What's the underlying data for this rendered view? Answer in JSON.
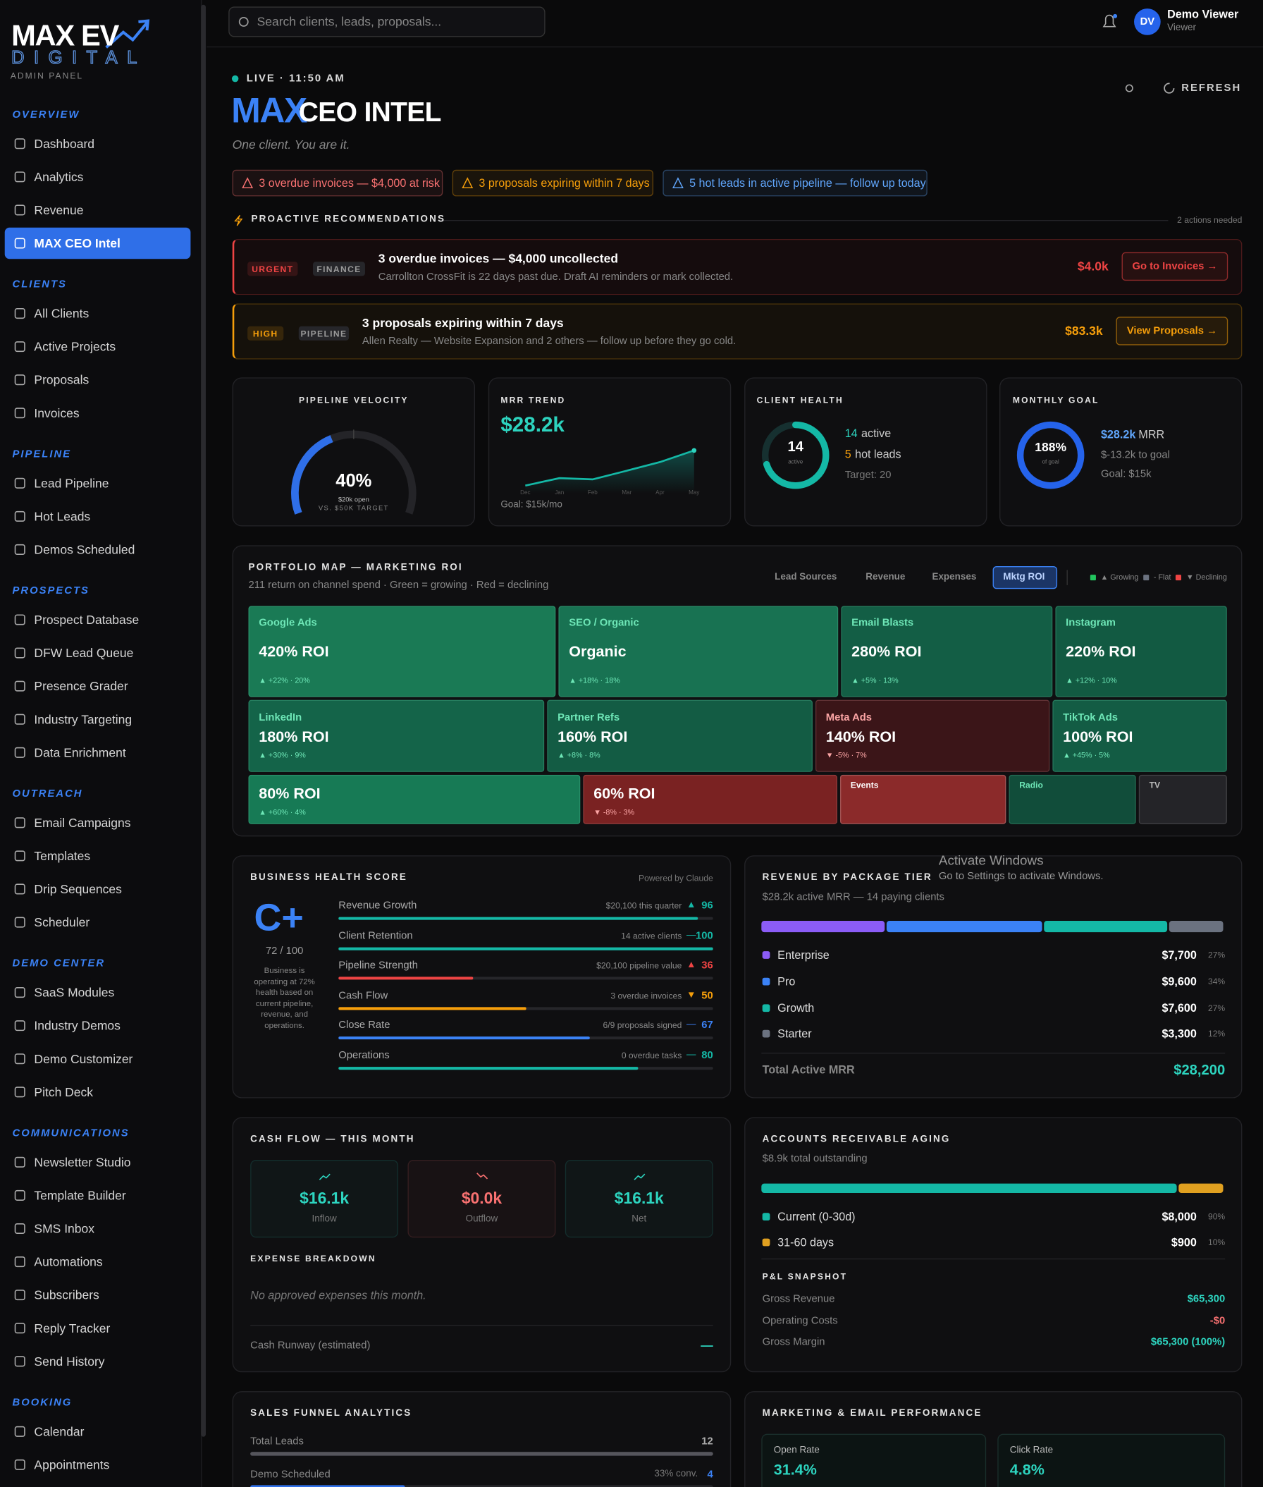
{
  "sidebar": {
    "logo_top": "MAX EV",
    "logo_bottom": "DIGITAL",
    "subtitle": "ADMIN PANEL",
    "active": {
      "section": 0,
      "item": 3
    },
    "sections": [
      {
        "title": "OVERVIEW",
        "items": [
          "Dashboard",
          "Analytics",
          "Revenue",
          "MAX CEO Intel"
        ]
      },
      {
        "title": "CLIENTS",
        "items": [
          "All Clients",
          "Active Projects",
          "Proposals",
          "Invoices"
        ]
      },
      {
        "title": "PIPELINE",
        "items": [
          "Lead Pipeline",
          "Hot Leads",
          "Demos Scheduled"
        ]
      },
      {
        "title": "PROSPECTS",
        "items": [
          "Prospect Database",
          "DFW Lead Queue",
          "Presence Grader",
          "Industry Targeting",
          "Data Enrichment"
        ]
      },
      {
        "title": "OUTREACH",
        "items": [
          "Email Campaigns",
          "Templates",
          "Drip Sequences",
          "Scheduler"
        ]
      },
      {
        "title": "DEMO CENTER",
        "items": [
          "SaaS Modules",
          "Industry Demos",
          "Demo Customizer",
          "Pitch Deck"
        ]
      },
      {
        "title": "COMMUNICATIONS",
        "items": [
          "Newsletter Studio",
          "Template Builder",
          "SMS Inbox",
          "Automations",
          "Subscribers",
          "Reply Tracker",
          "Send History"
        ]
      },
      {
        "title": "BOOKING",
        "items": [
          "Calendar",
          "Appointments"
        ]
      }
    ]
  },
  "topbar": {
    "search": "Search clients, leads, proposals...",
    "avatar": "DV",
    "user": "Demo Viewer",
    "role": "Viewer"
  },
  "header": {
    "live": "LIVE · 11:50 AM",
    "title_accent": "MAX",
    "title": "CEO INTEL",
    "tagline": "One client. You are it.",
    "refresh": "REFRESH"
  },
  "alerts": [
    {
      "text": "3 overdue invoices — $4,000 at risk",
      "color": "#f87171"
    },
    {
      "text": "3 proposals expiring within 7 days",
      "color": "#f59e0b"
    },
    {
      "text": "5 hot leads in active pipeline — follow up today",
      "color": "#60a5fa"
    }
  ],
  "recommendations": {
    "title": "PROACTIVE RECOMMENDATIONS",
    "count": "2 actions needed",
    "items": [
      {
        "priority": "URGENT",
        "category": "FINANCE",
        "title": "3 overdue invoices — $4,000 uncollected",
        "detail": "Carrollton CrossFit is 22 days past due. Draft AI reminders or mark collected.",
        "amount": "$4.0k",
        "action": "Go to Invoices →",
        "color": "#ef4444"
      },
      {
        "priority": "HIGH",
        "category": "PIPELINE",
        "title": "3 proposals expiring within 7 days",
        "detail": "Allen Realty — Website Expansion and 2 others — follow up before they go cold.",
        "amount": "$83.3k",
        "action": "View Proposals →",
        "color": "#f59e0b"
      }
    ]
  },
  "kpis": {
    "pipeline_velocity": {
      "title": "PIPELINE VELOCITY",
      "gauge": {
        "value": 40,
        "label": "40%"
      },
      "open": "$20k open",
      "target": "VS. $50K TARGET"
    },
    "mrr_trend": {
      "title": "MRR TREND",
      "value": "$28.2k",
      "months": [
        "Dec",
        "Jan",
        "Feb",
        "Mar",
        "Apr",
        "May"
      ],
      "values": [
        14,
        17,
        16.5,
        20,
        23.5,
        28.2
      ],
      "goal": "Goal: $15k/mo"
    },
    "client_health": {
      "title": "CLIENT HEALTH",
      "active": 14,
      "ring_label": "active",
      "active_text": "active",
      "hot": 5,
      "hot_text": "hot leads",
      "target": {
        "value": 20,
        "label": "Target: 20"
      }
    },
    "monthly_goal": {
      "title": "MONTHLY GOAL",
      "percent": {
        "value": 188,
        "label": "188%"
      },
      "ring_label": "of goal",
      "mrr": "$28.2k",
      "mrr_label": "MRR",
      "remaining": "$-13.2k to goal",
      "goal": "Goal: $15k"
    }
  },
  "portfolio": {
    "title": "PORTFOLIO MAP — MARKETING ROI",
    "subtitle": "211 return on channel spend · Green = growing · Red = declining",
    "tabs": [
      "Lead Sources",
      "Revenue",
      "Expenses",
      "Mktg ROI"
    ],
    "active_tab": 3,
    "legend": [
      {
        "text": "▲ Growing",
        "color": "#22c55e"
      },
      {
        "text": "- Flat",
        "color": "#6b7280"
      },
      {
        "text": "▼ Declining",
        "color": "#ef4444"
      }
    ],
    "tiles": [
      {
        "name": "Google Ads",
        "value": "420% ROI",
        "change": "▲ +22% · 20%",
        "color": "#1a7a55",
        "accent": "#6ee7b7"
      },
      {
        "name": "SEO / Organic",
        "value": "Organic",
        "change": "▲ +18% · 18%",
        "color": "#187252",
        "accent": "#6ee7b7"
      },
      {
        "name": "Email Blasts",
        "value": "280% ROI",
        "change": "▲ +5% · 13%",
        "color": "#135e45",
        "accent": "#6ee7b7"
      },
      {
        "name": "Instagram",
        "value": "220% ROI",
        "change": "▲ +12% · 10%",
        "color": "#125a42",
        "accent": "#6ee7b7"
      },
      {
        "name": "LinkedIn",
        "value": "180% ROI",
        "change": "▲ +30% · 9%",
        "color": "#146449",
        "accent": "#6ee7b7"
      },
      {
        "name": "Partner Refs",
        "value": "160% ROI",
        "change": "▲ +8% · 8%",
        "color": "#135c44",
        "accent": "#6ee7b7"
      },
      {
        "name": "Meta Ads",
        "value": "140% ROI",
        "change": "▼ -5% · 7%",
        "color": "#3b1518",
        "accent": "#fca5a5"
      },
      {
        "name": "TikTok Ads",
        "value": "100% ROI",
        "change": "▲ +45% · 5%",
        "color": "#135c44",
        "accent": "#6ee7b7"
      },
      {
        "value": "80% ROI",
        "change": "▲ +60% · 4%",
        "color": "#177a55",
        "accent": "#6ee7b7"
      },
      {
        "value": "60% ROI",
        "change": "▼ -8% · 3%",
        "color": "#7a2222",
        "accent": "#fca5a5"
      },
      {
        "name": "Events",
        "color": "#8b2a2a",
        "accent": "#ffffff"
      },
      {
        "name": "Radio",
        "color": "#114d3a",
        "accent": "#6ee7b7"
      },
      {
        "name": "TV",
        "color": "#242428",
        "accent": "#bbbbbb"
      }
    ]
  },
  "health": {
    "title": "BUSINESS HEALTH SCORE",
    "powered": "Powered by Claude",
    "grade": "C+",
    "score": "72 / 100",
    "description": "Business is operating at 72% health based on current pipeline, revenue, and operations.",
    "metrics": [
      {
        "name": "Revenue Growth",
        "detail": "$20,100 this quarter",
        "trend": "▲",
        "score": 96,
        "color": "#14b8a6"
      },
      {
        "name": "Client Retention",
        "detail": "14 active clients",
        "trend": "—",
        "score": 100,
        "color": "#14b8a6"
      },
      {
        "name": "Pipeline Strength",
        "detail": "$20,100 pipeline value",
        "trend": "▲",
        "score": 36,
        "color": "#ef4444"
      },
      {
        "name": "Cash Flow",
        "detail": "3 overdue invoices",
        "trend": "▼",
        "score": 50,
        "color": "#f59e0b"
      },
      {
        "name": "Close Rate",
        "detail": "6/9 proposals signed",
        "trend": "—",
        "score": 67,
        "color": "#3b82f6"
      },
      {
        "name": "Operations",
        "detail": "0 overdue tasks",
        "trend": "—",
        "score": 80,
        "color": "#14b8a6"
      }
    ]
  },
  "revenue_tiers": {
    "title": "REVENUE BY PACKAGE TIER",
    "subtitle": "$28.2k active MRR — 14 paying clients",
    "tiers": [
      {
        "name": "Enterprise",
        "amount": "$7,700",
        "share": {
          "value": 27,
          "label": "27%"
        },
        "color": "#8b5cf6"
      },
      {
        "name": "Pro",
        "amount": "$9,600",
        "share": {
          "value": 34,
          "label": "34%"
        },
        "color": "#3b82f6"
      },
      {
        "name": "Growth",
        "amount": "$7,600",
        "share": {
          "value": 27,
          "label": "27%"
        },
        "color": "#14b8a6"
      },
      {
        "name": "Starter",
        "amount": "$3,300",
        "share": {
          "value": 12,
          "label": "12%"
        },
        "color": "#6b7280"
      }
    ],
    "total_label": "Total Active MRR",
    "total": "$28,200"
  },
  "cash_flow": {
    "title": "CASH FLOW — THIS MONTH",
    "tiles": [
      {
        "value": "$16.1k",
        "label": "Inflow",
        "color": "#2dd4bf"
      },
      {
        "value": "$0.0k",
        "label": "Outflow",
        "color": "#f87171"
      },
      {
        "value": "$16.1k",
        "label": "Net",
        "color": "#2dd4bf"
      }
    ],
    "expense_title": "EXPENSE BREAKDOWN",
    "expense_empty": "No approved expenses this month.",
    "runway_label": "Cash Runway (estimated)",
    "runway": "—"
  },
  "ar_aging": {
    "title": "ACCOUNTS RECEIVABLE AGING",
    "subtitle": "$8.9k total outstanding",
    "buckets": [
      {
        "name": "Current (0-30d)",
        "amount": "$8,000",
        "share": {
          "value": 90,
          "label": "90%"
        },
        "color": "#14b8a6"
      },
      {
        "name": "31-60 days",
        "amount": "$900",
        "share": {
          "value": 10,
          "label": "10%"
        },
        "color": "#e0a020"
      }
    ],
    "pl_title": "P&L SNAPSHOT",
    "pl": [
      {
        "name": "Gross Revenue",
        "value": "$65,300",
        "color": "#2dd4bf"
      },
      {
        "name": "Operating Costs",
        "value": "-$0",
        "color": "#f87171"
      },
      {
        "name": "Gross Margin",
        "value": "$65,300 (100%)",
        "color": "#2dd4bf"
      }
    ]
  },
  "funnel": {
    "title": "SALES FUNNEL ANALYTICS",
    "stages": [
      {
        "name": "Total Leads",
        "count": 12
      },
      {
        "name": "Demo Scheduled",
        "conversion": "33% conv.",
        "count": 4
      }
    ]
  },
  "marketing": {
    "title": "MARKETING & EMAIL PERFORMANCE",
    "tiles": [
      {
        "label": "Open Rate",
        "value": "31.4%"
      },
      {
        "label": "Click Rate",
        "value": "4.8%"
      }
    ]
  },
  "watermark": {
    "title": "Activate Windows",
    "text": "Go to Settings to activate Windows."
  }
}
